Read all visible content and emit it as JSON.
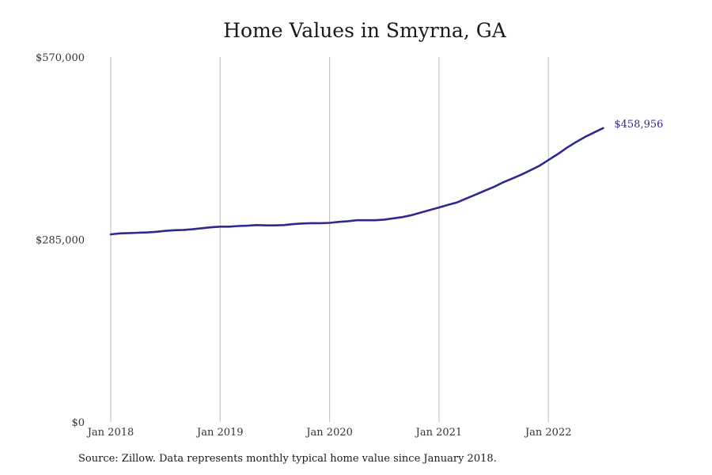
{
  "chart_data": {
    "type": "line",
    "title": "Home Values in Smyrna, GA",
    "xlabel": "",
    "ylabel": "",
    "ylim": [
      0,
      570000
    ],
    "xlim": [
      "2018-01",
      "2022-12"
    ],
    "grid": {
      "vertical": true,
      "horizontal": false
    },
    "legend": "none",
    "y_ticks": [
      {
        "value": 0,
        "label": "$0"
      },
      {
        "value": 285000,
        "label": "$285,000"
      },
      {
        "value": 570000,
        "label": "$570,000"
      }
    ],
    "x_ticks": [
      {
        "value": "2018-01",
        "label": "Jan 2018"
      },
      {
        "value": "2019-01",
        "label": "Jan 2019"
      },
      {
        "value": "2020-01",
        "label": "Jan 2020"
      },
      {
        "value": "2021-01",
        "label": "Jan 2021"
      },
      {
        "value": "2022-01",
        "label": "Jan 2022"
      }
    ],
    "series": [
      {
        "color": "#2e2a8c",
        "end_label": "$458,956",
        "points": [
          [
            "2018-01",
            293000
          ],
          [
            "2018-02",
            294500
          ],
          [
            "2018-03",
            295000
          ],
          [
            "2018-04",
            295500
          ],
          [
            "2018-05",
            296000
          ],
          [
            "2018-06",
            297000
          ],
          [
            "2018-07",
            298500
          ],
          [
            "2018-08",
            299500
          ],
          [
            "2018-09",
            300000
          ],
          [
            "2018-10",
            301000
          ],
          [
            "2018-11",
            302500
          ],
          [
            "2018-12",
            304000
          ],
          [
            "2019-01",
            305000
          ],
          [
            "2019-02",
            305000
          ],
          [
            "2019-03",
            306000
          ],
          [
            "2019-04",
            306500
          ],
          [
            "2019-05",
            307500
          ],
          [
            "2019-06",
            307000
          ],
          [
            "2019-07",
            307000
          ],
          [
            "2019-08",
            307500
          ],
          [
            "2019-09",
            309000
          ],
          [
            "2019-10",
            310000
          ],
          [
            "2019-11",
            310500
          ],
          [
            "2019-12",
            310500
          ],
          [
            "2020-01",
            311000
          ],
          [
            "2020-02",
            312500
          ],
          [
            "2020-03",
            313500
          ],
          [
            "2020-04",
            315000
          ],
          [
            "2020-05",
            315000
          ],
          [
            "2020-06",
            315000
          ],
          [
            "2020-07",
            316000
          ],
          [
            "2020-08",
            318000
          ],
          [
            "2020-09",
            320000
          ],
          [
            "2020-10",
            323000
          ],
          [
            "2020-11",
            327000
          ],
          [
            "2020-12",
            331000
          ],
          [
            "2021-01",
            335000
          ],
          [
            "2021-02",
            339000
          ],
          [
            "2021-03",
            343000
          ],
          [
            "2021-04",
            349000
          ],
          [
            "2021-05",
            355000
          ],
          [
            "2021-06",
            361000
          ],
          [
            "2021-07",
            367000
          ],
          [
            "2021-08",
            374000
          ],
          [
            "2021-09",
            380000
          ],
          [
            "2021-10",
            386000
          ],
          [
            "2021-11",
            393000
          ],
          [
            "2021-12",
            400000
          ],
          [
            "2022-01",
            409000
          ],
          [
            "2022-02",
            418000
          ],
          [
            "2022-03",
            428000
          ],
          [
            "2022-04",
            437000
          ],
          [
            "2022-05",
            445000
          ],
          [
            "2022-06",
            452000
          ],
          [
            "2022-07",
            458956
          ]
        ]
      }
    ],
    "source": "Source: Zillow. Data represents monthly typical home value since January 2018."
  }
}
